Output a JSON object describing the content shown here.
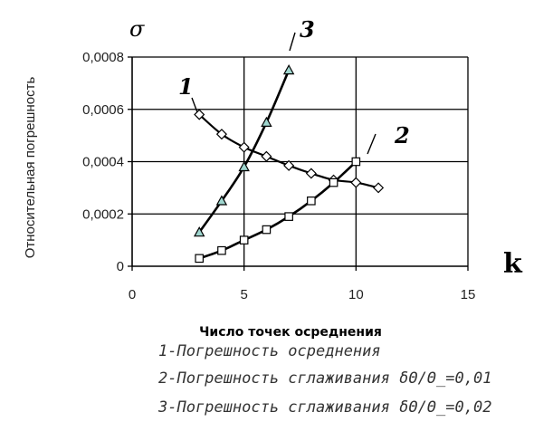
{
  "chart_data": {
    "type": "line",
    "ylabel": "Относительная погрешность",
    "xlabel": "Число точек осреднения",
    "y_symbol": "σ",
    "x_symbol": "k",
    "xlim": [
      0,
      15
    ],
    "ylim": [
      0,
      0.0008
    ],
    "x_ticks": [
      0,
      5,
      10,
      15
    ],
    "x_tick_labels": [
      "0",
      "5",
      "10",
      "15"
    ],
    "y_ticks": [
      0,
      0.0002,
      0.0004,
      0.0006,
      0.0008
    ],
    "y_tick_labels": [
      "0",
      "0,0002",
      "0,0004",
      "0,0006",
      "0,0008"
    ],
    "grid": "horizontal and vertical",
    "series": [
      {
        "number": "1",
        "marker": "diamond",
        "x": [
          3,
          4,
          5,
          6,
          7,
          8,
          9,
          10,
          11
        ],
        "y": [
          0.00058,
          0.000505,
          0.000455,
          0.00042,
          0.000385,
          0.000355,
          0.00033,
          0.00032,
          0.0003
        ]
      },
      {
        "number": "2",
        "marker": "square",
        "x": [
          3,
          4,
          5,
          6,
          7,
          8,
          9,
          10
        ],
        "y": [
          3e-05,
          6e-05,
          0.0001,
          0.00014,
          0.00019,
          0.00025,
          0.00032,
          0.0004
        ]
      },
      {
        "number": "3",
        "marker": "triangle",
        "x": [
          3,
          4,
          5,
          6,
          7
        ],
        "y": [
          0.00013,
          0.00025,
          0.00038,
          0.00055,
          0.00075
        ]
      }
    ],
    "legend": [
      "1-Погрешность осреднения",
      "2-Погрешность сглаживания δΘ/Θ_=0,01",
      "3-Погрешность сглаживания δΘ/Θ_=0,02"
    ]
  }
}
